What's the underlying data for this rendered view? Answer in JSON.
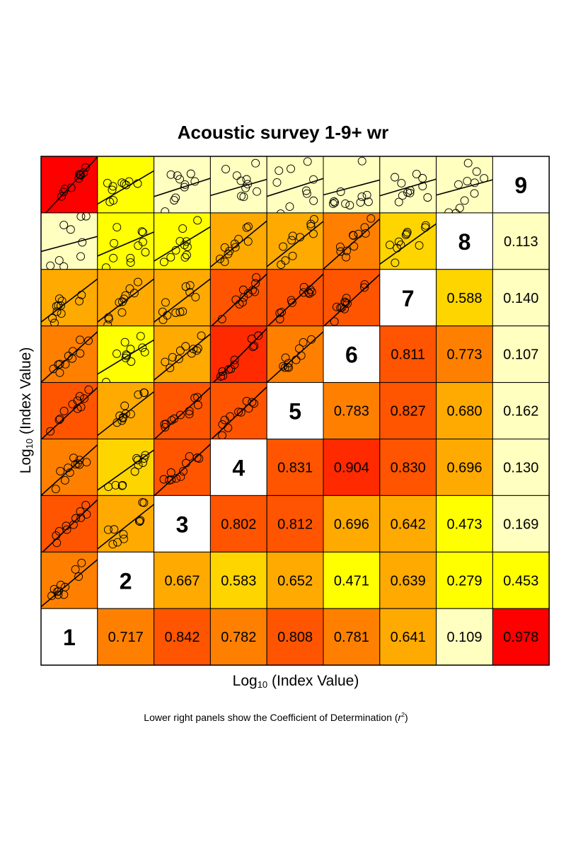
{
  "chart_data": {
    "type": "heatmap",
    "title": "Acoustic survey 1-9+ wr",
    "xlabel": "Log10 (Index Value)",
    "ylabel": "Log10 (Index Value)",
    "xlabel_parts": {
      "base": "Log",
      "sub": "10",
      "rest": " (Index Value)"
    },
    "ylabel_parts": {
      "base": "Log",
      "sub": "10",
      "rest": " (Index Value)"
    },
    "footnote": {
      "text": "Lower right panels show the Coefficient of Determination (",
      "var": "r",
      "sup": "2",
      "close": ")"
    },
    "ages": [
      "1",
      "2",
      "3",
      "4",
      "5",
      "6",
      "7",
      "8",
      "9"
    ],
    "r2_pairs": [
      {
        "a": 1,
        "b": 2,
        "value": "0.717"
      },
      {
        "a": 1,
        "b": 3,
        "value": "0.842"
      },
      {
        "a": 1,
        "b": 4,
        "value": "0.782"
      },
      {
        "a": 1,
        "b": 5,
        "value": "0.808"
      },
      {
        "a": 1,
        "b": 6,
        "value": "0.781"
      },
      {
        "a": 1,
        "b": 7,
        "value": "0.641"
      },
      {
        "a": 1,
        "b": 8,
        "value": "0.109"
      },
      {
        "a": 1,
        "b": 9,
        "value": "0.978"
      },
      {
        "a": 2,
        "b": 3,
        "value": "0.667"
      },
      {
        "a": 2,
        "b": 4,
        "value": "0.583"
      },
      {
        "a": 2,
        "b": 5,
        "value": "0.652"
      },
      {
        "a": 2,
        "b": 6,
        "value": "0.471"
      },
      {
        "a": 2,
        "b": 7,
        "value": "0.639"
      },
      {
        "a": 2,
        "b": 8,
        "value": "0.279"
      },
      {
        "a": 2,
        "b": 9,
        "value": "0.453"
      },
      {
        "a": 3,
        "b": 4,
        "value": "0.802"
      },
      {
        "a": 3,
        "b": 5,
        "value": "0.812"
      },
      {
        "a": 3,
        "b": 6,
        "value": "0.696"
      },
      {
        "a": 3,
        "b": 7,
        "value": "0.642"
      },
      {
        "a": 3,
        "b": 8,
        "value": "0.473"
      },
      {
        "a": 3,
        "b": 9,
        "value": "0.169"
      },
      {
        "a": 4,
        "b": 5,
        "value": "0.831"
      },
      {
        "a": 4,
        "b": 6,
        "value": "0.904"
      },
      {
        "a": 4,
        "b": 7,
        "value": "0.830"
      },
      {
        "a": 4,
        "b": 8,
        "value": "0.696"
      },
      {
        "a": 4,
        "b": 9,
        "value": "0.130"
      },
      {
        "a": 5,
        "b": 6,
        "value": "0.783"
      },
      {
        "a": 5,
        "b": 7,
        "value": "0.827"
      },
      {
        "a": 5,
        "b": 8,
        "value": "0.680"
      },
      {
        "a": 5,
        "b": 9,
        "value": "0.162"
      },
      {
        "a": 6,
        "b": 7,
        "value": "0.811"
      },
      {
        "a": 6,
        "b": 8,
        "value": "0.773"
      },
      {
        "a": 6,
        "b": 9,
        "value": "0.107"
      },
      {
        "a": 7,
        "b": 8,
        "value": "0.588"
      },
      {
        "a": 7,
        "b": 9,
        "value": "0.140"
      },
      {
        "a": 8,
        "b": 9,
        "value": "0.113"
      }
    ],
    "color_scale": [
      {
        "max": 0.2,
        "color": "#ffffc0"
      },
      {
        "max": 0.5,
        "color": "#ffff00"
      },
      {
        "max": 0.6,
        "color": "#ffd500"
      },
      {
        "max": 0.7,
        "color": "#ffaa00"
      },
      {
        "max": 0.8,
        "color": "#ff8000"
      },
      {
        "max": 0.88,
        "color": "#ff5500"
      },
      {
        "max": 0.95,
        "color": "#ff2a00"
      },
      {
        "max": 1.0,
        "color": "#ff0000"
      }
    ],
    "diagonal_color": "#ffffff",
    "upper_panels": "scatter plots of log index value pairs with fitted regression line"
  }
}
